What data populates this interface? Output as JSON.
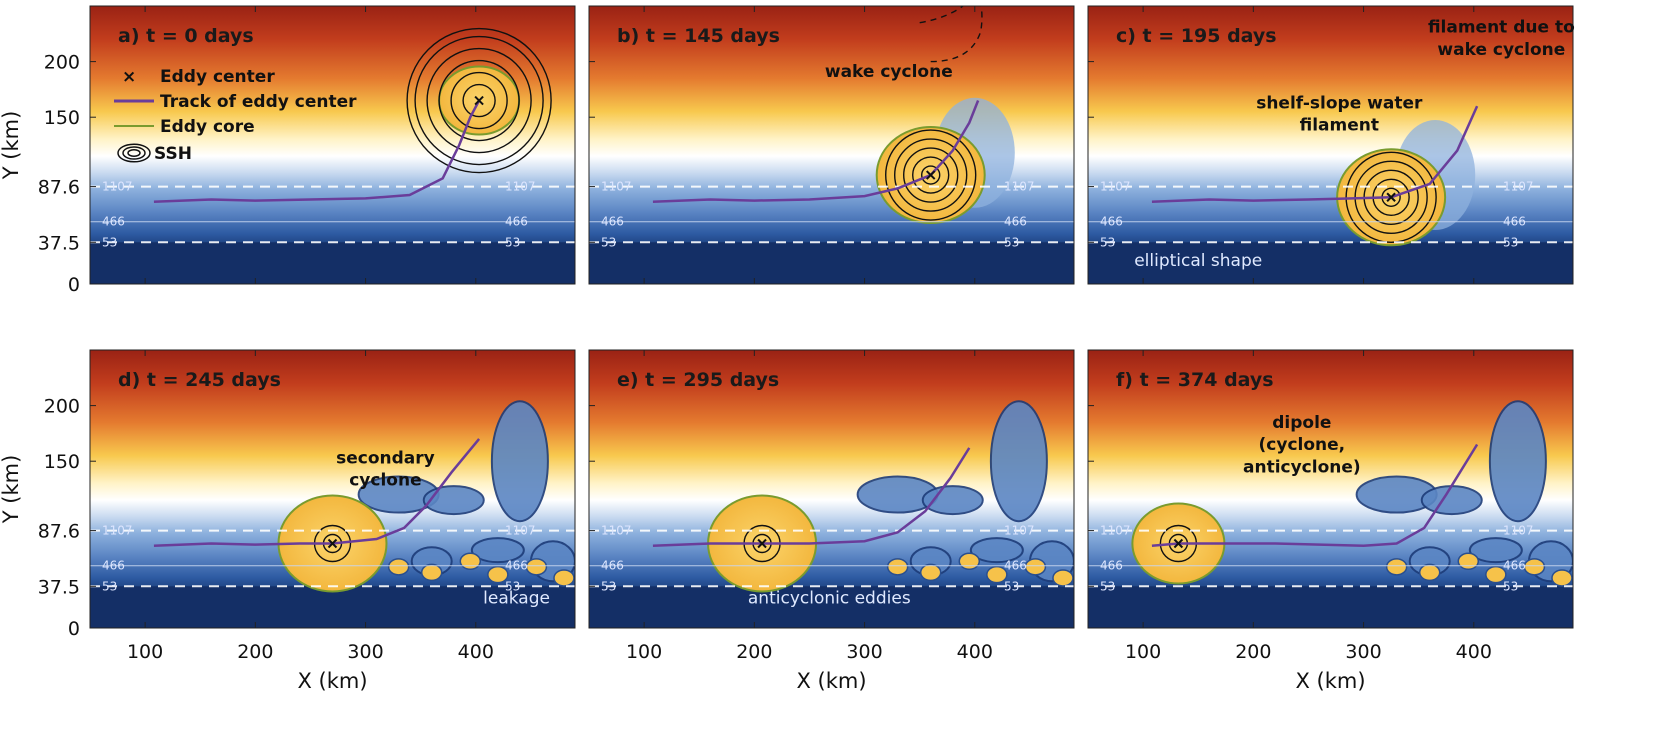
{
  "chart_data": {
    "type": "heatmap",
    "xlabel": "X (km)",
    "ylabel": "Y (km)",
    "x_range": [
      50,
      490
    ],
    "y_range": [
      0,
      250
    ],
    "x_ticks": [
      100,
      200,
      300,
      400
    ],
    "y_ticks": [
      0,
      37.5,
      87.6,
      150,
      200
    ],
    "x_tick_labels": [
      "100",
      "200",
      "300",
      "400"
    ],
    "y_tick_labels": [
      "0",
      "37.5",
      "87.6",
      "150",
      "200"
    ],
    "isobath_labels": [
      "1107",
      "466",
      "53"
    ],
    "isobath_y": [
      87.6,
      56,
      37.5
    ],
    "legend": {
      "eddy_center": "Eddy center",
      "track": "Track of eddy center",
      "core": "Eddy core",
      "ssh": "SSH"
    },
    "colors": {
      "warm": "#b8321b",
      "eddy_core": "#f7c64c",
      "shelf": "#1f3f80",
      "track": "#6a3d9a",
      "core_line": "#7a9b2e"
    },
    "panels": [
      {
        "title": "a) t = 0 days",
        "eddy_center": [
          403,
          165
        ],
        "track": [
          [
            108,
            74
          ],
          [
            160,
            76
          ],
          [
            200,
            75
          ],
          [
            250,
            76
          ],
          [
            300,
            77
          ],
          [
            340,
            80
          ],
          [
            370,
            95
          ],
          [
            385,
            125
          ],
          [
            395,
            150
          ],
          [
            403,
            165
          ]
        ],
        "annotations": []
      },
      {
        "title": "b) t = 145 days",
        "eddy_center": [
          360,
          98
        ],
        "track": [
          [
            108,
            74
          ],
          [
            160,
            76
          ],
          [
            200,
            75
          ],
          [
            250,
            76
          ],
          [
            300,
            79
          ],
          [
            330,
            86
          ],
          [
            360,
            98
          ],
          [
            380,
            120
          ],
          [
            395,
            145
          ],
          [
            403,
            165
          ]
        ],
        "annotations": [
          {
            "text": "wake cyclone",
            "x": 322,
            "y": 186
          }
        ]
      },
      {
        "title": "c) t = 195 days",
        "eddy_center": [
          325,
          78
        ],
        "track": [
          [
            108,
            74
          ],
          [
            160,
            76
          ],
          [
            200,
            75
          ],
          [
            250,
            76
          ],
          [
            290,
            77
          ],
          [
            325,
            78
          ],
          [
            360,
            90
          ],
          [
            385,
            120
          ],
          [
            403,
            160
          ]
        ],
        "annotations": [
          {
            "text": "filament due to",
            "x": 425,
            "y": 226
          },
          {
            "text": "wake cyclone",
            "x": 425,
            "y": 206
          },
          {
            "text": "shelf-slope water",
            "x": 278,
            "y": 158
          },
          {
            "text": "filament",
            "x": 278,
            "y": 138
          },
          {
            "text": "elliptical shape",
            "x": 150,
            "y": 16
          }
        ]
      },
      {
        "title": "d) t = 245 days",
        "eddy_center": [
          270,
          76
        ],
        "track": [
          [
            108,
            74
          ],
          [
            160,
            76
          ],
          [
            200,
            75
          ],
          [
            240,
            76
          ],
          [
            270,
            76
          ],
          [
            310,
            80
          ],
          [
            335,
            90
          ],
          [
            355,
            110
          ],
          [
            378,
            140
          ],
          [
            403,
            170
          ]
        ],
        "annotations": [
          {
            "text": "secondary",
            "x": 318,
            "y": 148
          },
          {
            "text": "cyclone",
            "x": 318,
            "y": 128
          },
          {
            "text": "leakage",
            "x": 437,
            "y": 22
          }
        ]
      },
      {
        "title": "e) t = 295 days",
        "eddy_center": [
          207,
          76
        ],
        "track": [
          [
            108,
            74
          ],
          [
            160,
            76
          ],
          [
            207,
            76
          ],
          [
            250,
            76
          ],
          [
            300,
            78
          ],
          [
            330,
            86
          ],
          [
            355,
            105
          ],
          [
            378,
            135
          ],
          [
            395,
            162
          ]
        ],
        "annotations": [
          {
            "text": "anticyclonic eddies",
            "x": 268,
            "y": 22
          }
        ]
      },
      {
        "title": "f) t = 374 days",
        "eddy_center": [
          132,
          76
        ],
        "track": [
          [
            108,
            74
          ],
          [
            132,
            76
          ],
          [
            170,
            76
          ],
          [
            220,
            76
          ],
          [
            260,
            75
          ],
          [
            300,
            74
          ],
          [
            330,
            76
          ],
          [
            355,
            90
          ],
          [
            375,
            120
          ],
          [
            403,
            165
          ]
        ],
        "annotations": [
          {
            "text": "dipole",
            "x": 244,
            "y": 180
          },
          {
            "text": "(cyclone,",
            "x": 244,
            "y": 160
          },
          {
            "text": "anticyclone)",
            "x": 244,
            "y": 140
          }
        ]
      }
    ]
  }
}
